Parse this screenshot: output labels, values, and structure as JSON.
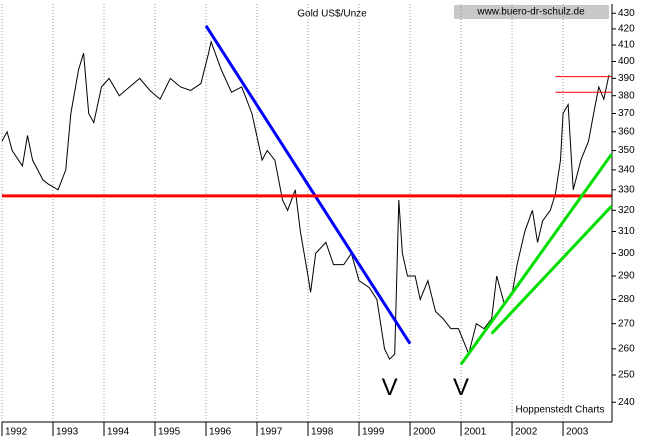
{
  "chart_data": {
    "type": "line",
    "title": "Gold US$/Unze",
    "source": "www.buero-dr-schulz.de",
    "credit": "Hoppenstedt Charts",
    "x": [
      1992.0,
      1992.1,
      1992.2,
      1992.4,
      1992.5,
      1992.6,
      1992.7,
      1992.8,
      1992.9,
      1993.1,
      1993.25,
      1993.35,
      1993.5,
      1993.6,
      1993.7,
      1993.8,
      1993.95,
      1994.1,
      1994.3,
      1994.5,
      1994.7,
      1994.9,
      1995.1,
      1995.3,
      1995.5,
      1995.7,
      1995.9,
      1996.05,
      1996.1,
      1996.3,
      1996.5,
      1996.7,
      1996.9,
      1997.1,
      1997.2,
      1997.35,
      1997.5,
      1997.6,
      1997.75,
      1997.85,
      1998.0,
      1998.05,
      1998.15,
      1998.35,
      1998.5,
      1998.7,
      1998.85,
      1999.0,
      1999.2,
      1999.35,
      1999.5,
      1999.6,
      1999.7,
      1999.78,
      1999.85,
      1999.95,
      2000.1,
      2000.2,
      2000.35,
      2000.5,
      2000.65,
      2000.8,
      2000.95,
      2001.05,
      2001.15,
      2001.3,
      2001.45,
      2001.6,
      2001.7,
      2001.85,
      2002.0,
      2002.1,
      2002.25,
      2002.4,
      2002.5,
      2002.6,
      2002.75,
      2002.85,
      2002.95,
      2003.0,
      2003.1,
      2003.2,
      2003.35,
      2003.5,
      2003.6,
      2003.7,
      2003.8,
      2003.9
    ],
    "series": [
      {
        "color": "#000000",
        "values": [
          355,
          360,
          350,
          342,
          358,
          345,
          340,
          335,
          333,
          330,
          340,
          370,
          395,
          405,
          370,
          365,
          385,
          390,
          380,
          385,
          390,
          383,
          378,
          390,
          385,
          383,
          387,
          405,
          412,
          395,
          382,
          385,
          370,
          345,
          350,
          345,
          325,
          320,
          330,
          310,
          290,
          283,
          300,
          305,
          295,
          295,
          300,
          288,
          285,
          280,
          260,
          256,
          258,
          325,
          300,
          290,
          290,
          280,
          288,
          275,
          272,
          268,
          268,
          263,
          258,
          270,
          268,
          272,
          290,
          278,
          282,
          295,
          310,
          320,
          305,
          315,
          320,
          328,
          345,
          370,
          375,
          330,
          345,
          355,
          370,
          385,
          378,
          392
        ]
      }
    ],
    "lines": [
      {
        "color": "#0000ff",
        "x": [
          1996.0,
          2000.0
        ],
        "y": [
          422,
          262
        ]
      },
      {
        "color": "#ff0000",
        "x": [
          1992.0,
          2003.95
        ],
        "y": [
          327,
          327
        ]
      },
      {
        "color": "#00dd00",
        "x": [
          2001.0,
          2003.95
        ],
        "y": [
          254,
          348
        ]
      },
      {
        "color": "#00dd00",
        "x": [
          2001.6,
          2003.95
        ],
        "y": [
          266,
          322
        ]
      },
      {
        "color": "#ff0000",
        "x": [
          2002.85,
          2003.95
        ],
        "y": [
          391,
          391
        ]
      },
      {
        "color": "#ff0000",
        "x": [
          2002.85,
          2003.95
        ],
        "y": [
          382,
          382
        ]
      }
    ],
    "annotations": [
      {
        "text": "V",
        "x": 1999.6,
        "y": 245,
        "color": "#ff0000"
      },
      {
        "text": "V",
        "x": 2001.0,
        "y": 245,
        "color": "#ff0000"
      }
    ],
    "xlim": [
      1992,
      2003.96
    ],
    "xticks": [
      1992,
      1993,
      1994,
      1995,
      1996,
      1997,
      1998,
      1999,
      2000,
      2001,
      2002,
      2003
    ],
    "ylim": [
      233,
      436
    ],
    "yticks": [
      240,
      250,
      260,
      270,
      280,
      290,
      300,
      310,
      320,
      330,
      340,
      350,
      360,
      370,
      380,
      390,
      400,
      410,
      420,
      430
    ],
    "log_scale": true,
    "grid": true
  }
}
